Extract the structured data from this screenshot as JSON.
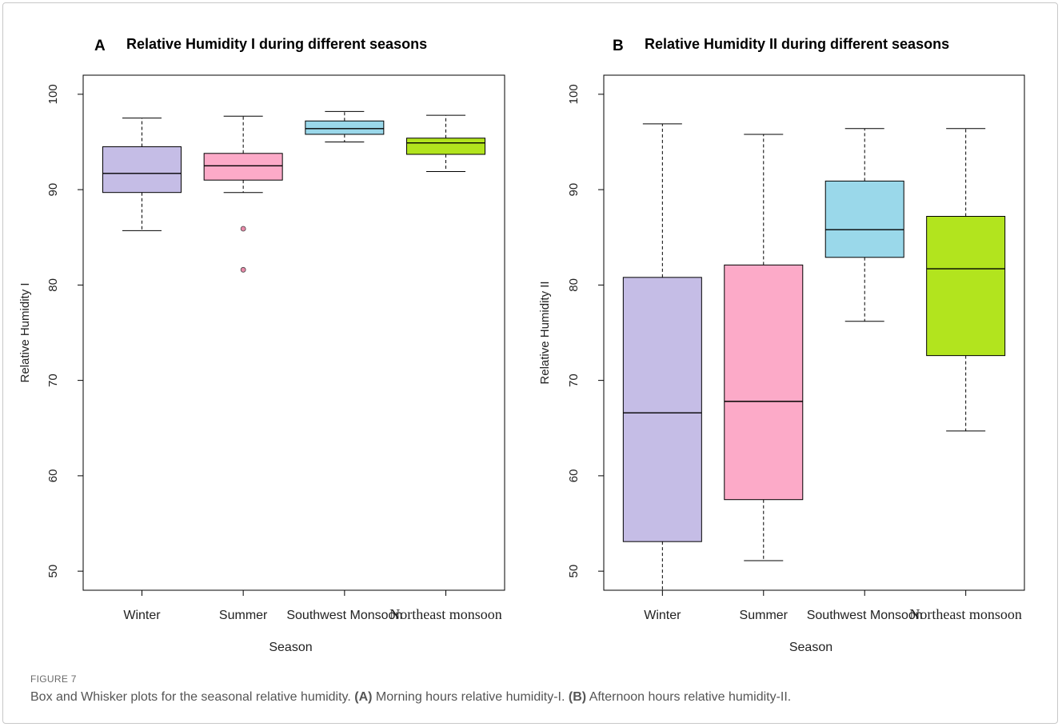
{
  "figure": {
    "label": "FIGURE 7",
    "caption_lead": "Box and Whisker plots for the seasonal relative humidity.",
    "caption_a_tag": "(A)",
    "caption_a_text": "Morning hours relative humidity-I.",
    "caption_b_tag": "(B)",
    "caption_b_text": "Afternoon hours relative humidity-II."
  },
  "colors": {
    "Winter": "#c5bde6",
    "Summer": "#fcaac8",
    "Southwest Monsoon": "#9ad8ea",
    "Northeast monsoon": "#b2e41e",
    "outlier": "#e98aa9"
  },
  "chart_data": [
    {
      "type": "box",
      "panel": "A",
      "title": "Relative Humidity I during different seasons",
      "xlabel": "Season",
      "ylabel": "Relative Humidity I",
      "ylim": [
        48,
        102
      ],
      "yticks": [
        50,
        60,
        70,
        80,
        90,
        100
      ],
      "categories": [
        "Winter",
        "Summer",
        "Southwest Monsoon",
        "Northeast monsoon"
      ],
      "boxes": [
        {
          "name": "Winter",
          "min": 85.7,
          "q1": 89.7,
          "median": 91.7,
          "q3": 94.5,
          "max": 97.5,
          "outliers": []
        },
        {
          "name": "Summer",
          "min": 89.7,
          "q1": 91.0,
          "median": 92.5,
          "q3": 93.8,
          "max": 97.7,
          "outliers": [
            85.9,
            81.6
          ]
        },
        {
          "name": "Southwest Monsoon",
          "min": 95.0,
          "q1": 95.8,
          "median": 96.4,
          "q3": 97.2,
          "max": 98.2,
          "outliers": []
        },
        {
          "name": "Northeast monsoon",
          "min": 91.9,
          "q1": 93.7,
          "median": 94.9,
          "q3": 95.4,
          "max": 97.8,
          "outliers": []
        }
      ]
    },
    {
      "type": "box",
      "panel": "B",
      "title": "Relative Humidity II during different seasons",
      "xlabel": "Season",
      "ylabel": "Relative Humidity II",
      "ylim": [
        48,
        102
      ],
      "yticks": [
        50,
        60,
        70,
        80,
        90,
        100
      ],
      "categories": [
        "Winter",
        "Summer",
        "Southwest Monsoon",
        "Northeast monsoon"
      ],
      "boxes": [
        {
          "name": "Winter",
          "min": 48.0,
          "q1": 53.1,
          "median": 66.6,
          "q3": 80.8,
          "max": 96.9,
          "outliers": []
        },
        {
          "name": "Summer",
          "min": 51.1,
          "q1": 57.5,
          "median": 67.8,
          "q3": 82.1,
          "max": 95.8,
          "outliers": []
        },
        {
          "name": "Southwest Monsoon",
          "min": 76.2,
          "q1": 82.9,
          "median": 85.8,
          "q3": 90.9,
          "max": 96.4,
          "outliers": []
        },
        {
          "name": "Northeast monsoon",
          "min": 64.7,
          "q1": 72.6,
          "median": 81.7,
          "q3": 87.2,
          "max": 96.4,
          "outliers": []
        }
      ]
    }
  ]
}
